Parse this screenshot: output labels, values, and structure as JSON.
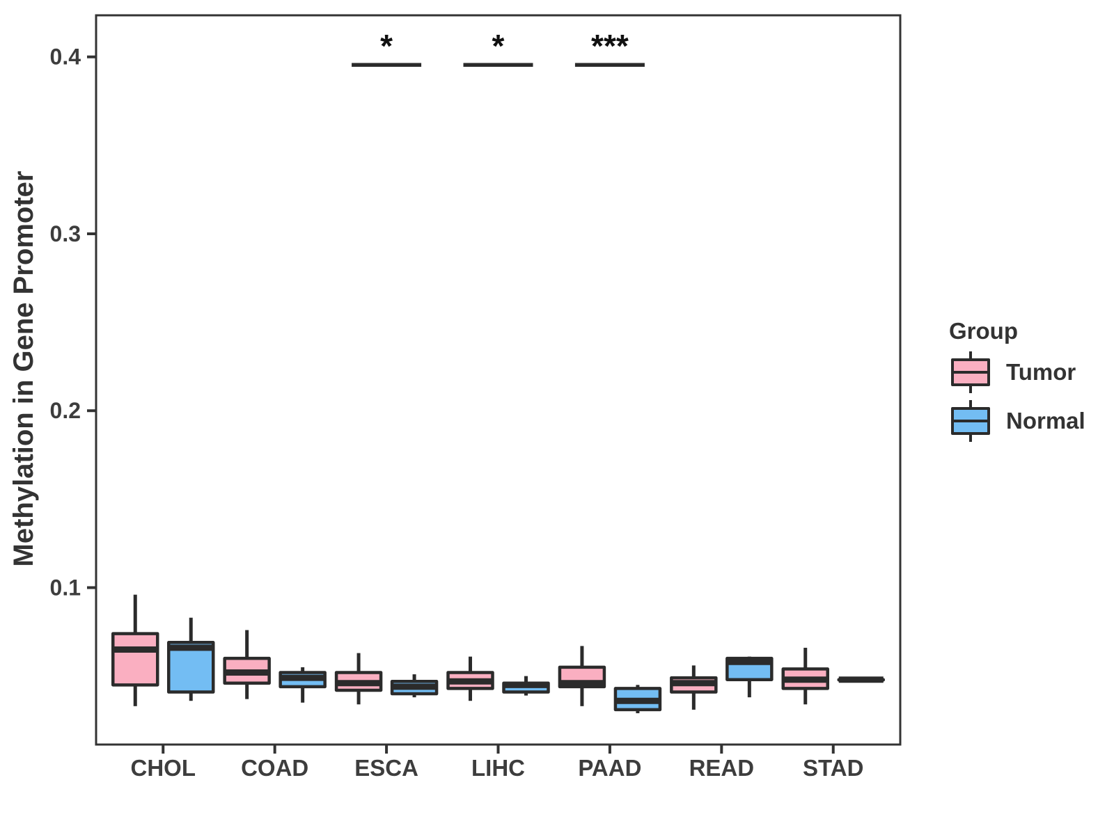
{
  "page": {
    "background": "#FFFFFF"
  },
  "colors": {
    "box_border": "#2B2B2B",
    "panel_border": "#333333",
    "axis_text": "#3D3D3D",
    "label_text": "#333333",
    "tumor_fill": "#FAAFC1",
    "normal_fill": "#73BDF3"
  },
  "chart_data": {
    "type": "boxplot",
    "title": "",
    "xlabel": "",
    "ylabel": "Methylation in Gene Promoter",
    "grid": false,
    "categories": [
      "CHOL",
      "COAD",
      "ESCA",
      "LIHC",
      "PAAD",
      "READ",
      "STAD"
    ],
    "y_ticks": [
      0.1,
      0.2,
      0.3,
      0.4
    ],
    "y_tick_labels": [
      "0.1",
      "0.2",
      "0.3",
      "0.4"
    ],
    "y_domain": [
      0.0113,
      0.4235
    ],
    "legend": {
      "title": "Group",
      "position": "right"
    },
    "groups": [
      {
        "name": "Tumor",
        "color": "#FAAFC1"
      },
      {
        "name": "Normal",
        "color": "#73BDF3"
      }
    ],
    "series": [
      {
        "group": "Tumor",
        "color": "#FAAFC1",
        "boxes": [
          {
            "category": "CHOL",
            "min": 0.033,
            "q1": 0.045,
            "median": 0.065,
            "q3": 0.074,
            "max": 0.096
          },
          {
            "category": "COAD",
            "min": 0.037,
            "q1": 0.046,
            "median": 0.052,
            "q3": 0.06,
            "max": 0.076
          },
          {
            "category": "ESCA",
            "min": 0.034,
            "q1": 0.042,
            "median": 0.046,
            "q3": 0.052,
            "max": 0.063
          },
          {
            "category": "LIHC",
            "min": 0.036,
            "q1": 0.043,
            "median": 0.047,
            "q3": 0.052,
            "max": 0.061
          },
          {
            "category": "PAAD",
            "min": 0.033,
            "q1": 0.044,
            "median": 0.046,
            "q3": 0.055,
            "max": 0.067
          },
          {
            "category": "READ",
            "min": 0.031,
            "q1": 0.041,
            "median": 0.046,
            "q3": 0.049,
            "max": 0.056
          },
          {
            "category": "STAD",
            "min": 0.034,
            "q1": 0.043,
            "median": 0.048,
            "q3": 0.054,
            "max": 0.066
          }
        ]
      },
      {
        "group": "Normal",
        "color": "#73BDF3",
        "boxes": [
          {
            "category": "CHOL",
            "min": 0.036,
            "q1": 0.041,
            "median": 0.066,
            "q3": 0.069,
            "max": 0.083
          },
          {
            "category": "COAD",
            "min": 0.035,
            "q1": 0.044,
            "median": 0.049,
            "q3": 0.052,
            "max": 0.055
          },
          {
            "category": "ESCA",
            "min": 0.038,
            "q1": 0.04,
            "median": 0.044,
            "q3": 0.047,
            "max": 0.051
          },
          {
            "category": "LIHC",
            "min": 0.039,
            "q1": 0.041,
            "median": 0.045,
            "q3": 0.046,
            "max": 0.05
          },
          {
            "category": "PAAD",
            "min": 0.029,
            "q1": 0.031,
            "median": 0.036,
            "q3": 0.043,
            "max": 0.045
          },
          {
            "category": "READ",
            "min": 0.038,
            "q1": 0.048,
            "median": 0.058,
            "q3": 0.06,
            "max": 0.061
          },
          {
            "category": "STAD",
            "min": 0.048,
            "q1": 0.048,
            "median": 0.048,
            "q3": 0.048,
            "max": 0.048
          }
        ]
      }
    ],
    "significance": [
      {
        "category": "ESCA",
        "label": "*",
        "bar_y": 0.3955
      },
      {
        "category": "LIHC",
        "label": "*",
        "bar_y": 0.3955
      },
      {
        "category": "PAAD",
        "label": "***",
        "bar_y": 0.3955
      }
    ]
  }
}
